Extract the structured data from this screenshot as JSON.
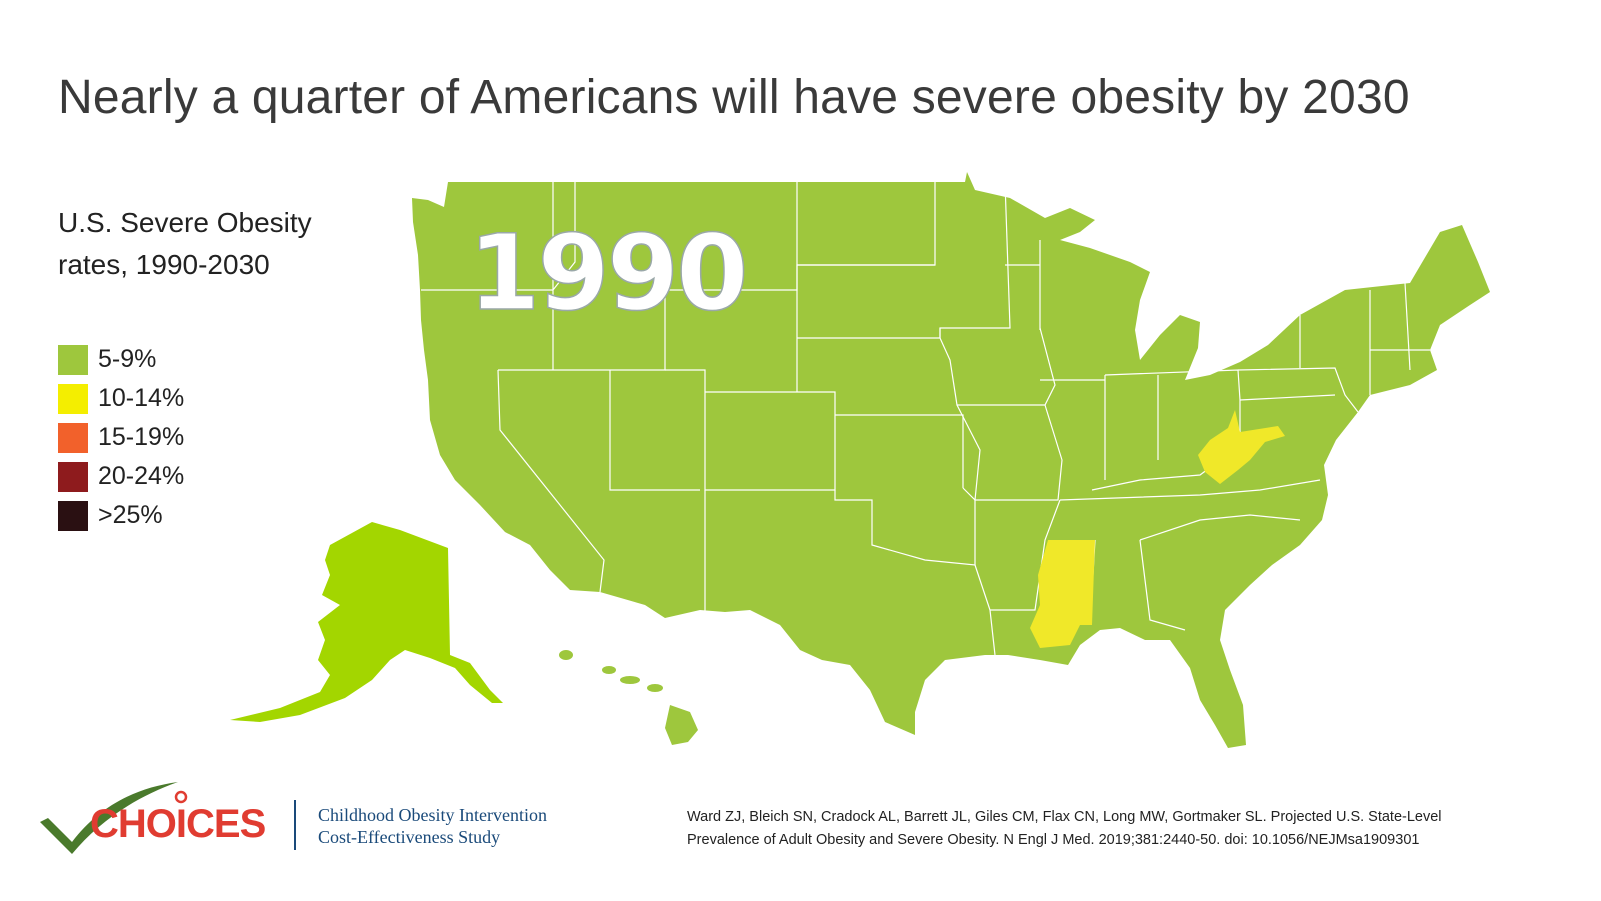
{
  "title": "Nearly a quarter of Americans will have severe obesity by 2030",
  "legend": {
    "title": "U.S. Severe Obesity rates, 1990-2030",
    "items": [
      {
        "label": "5-9%",
        "color": "#9ec73d"
      },
      {
        "label": "10-14%",
        "color": "#f4ee00"
      },
      {
        "label": "15-19%",
        "color": "#f2612b"
      },
      {
        "label": "20-24%",
        "color": "#8e1b1d"
      },
      {
        "label": ">25%",
        "color": "#2a1012"
      }
    ]
  },
  "map": {
    "year": "1990",
    "colors": {
      "base": "#9ec73d",
      "alaska": "#a3d600",
      "highlight": "#f0e829"
    },
    "highlighted_states": [
      "Mississippi",
      "West Virginia"
    ]
  },
  "logo": {
    "name": "CHOICES",
    "subtitle_line1": "Childhood Obesity Intervention",
    "subtitle_line2": "Cost-Effectiveness Study"
  },
  "citation": {
    "line1": "Ward ZJ, Bleich SN, Cradock AL, Barrett JL, Giles CM, Flax CN, Long MW, Gortmaker SL. Projected U.S. State-Level",
    "line2": "Prevalence of Adult Obesity and Severe Obesity. N Engl J Med. 2019;381:2440-50. doi: 10.1056/NEJMsa1909301"
  }
}
